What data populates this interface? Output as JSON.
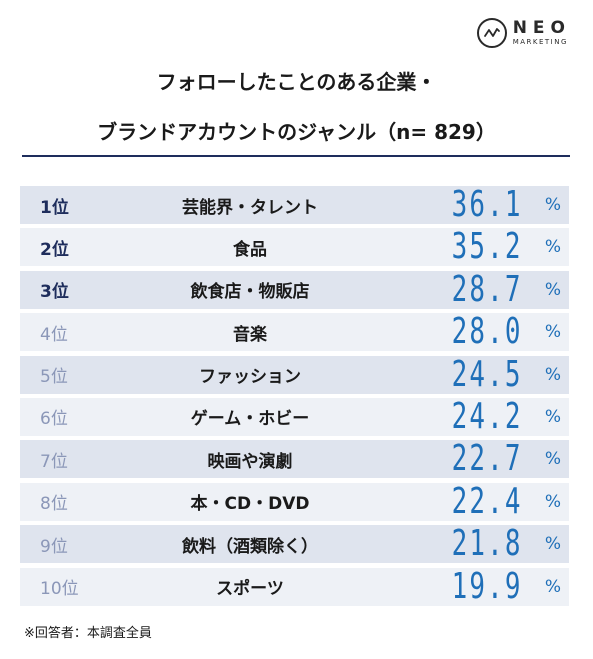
{
  "brand": {
    "name": "NEO",
    "sub": "MARKETING"
  },
  "title_line1": "フォローしたことのある企業・",
  "title_line2": "ブランドアカウントのジャンル（n= 829）",
  "unit": "%",
  "footnote": "※回答者：本調査全員",
  "colors": {
    "accent": "#1f6fb8",
    "navy": "#1e2d5c",
    "rowA": "#dfe4ee",
    "rowB": "#eef1f6"
  },
  "chart_data": {
    "type": "table",
    "title": "フォローしたことのある企業・ブランドアカウントのジャンル（n= 829）",
    "columns": [
      "rank",
      "category",
      "value",
      "unit"
    ],
    "rows": [
      {
        "rank": "1位",
        "category": "芸能界・タレント",
        "value": "36.1",
        "unit": "%"
      },
      {
        "rank": "2位",
        "category": "食品",
        "value": "35.2",
        "unit": "%"
      },
      {
        "rank": "3位",
        "category": "飲食店・物販店",
        "value": "28.7",
        "unit": "%"
      },
      {
        "rank": "4位",
        "category": "音楽",
        "value": "28.0",
        "unit": "%"
      },
      {
        "rank": "5位",
        "category": "ファッション",
        "value": "24.5",
        "unit": "%"
      },
      {
        "rank": "6位",
        "category": "ゲーム・ホビー",
        "value": "24.2",
        "unit": "%"
      },
      {
        "rank": "7位",
        "category": "映画や演劇",
        "value": "22.7",
        "unit": "%"
      },
      {
        "rank": "8位",
        "category": "本・CD・DVD",
        "value": "22.4",
        "unit": "%"
      },
      {
        "rank": "9位",
        "category": "飲料（酒類除く）",
        "value": "21.8",
        "unit": "%"
      },
      {
        "rank": "10位",
        "category": "スポーツ",
        "value": "19.9",
        "unit": "%"
      }
    ]
  }
}
